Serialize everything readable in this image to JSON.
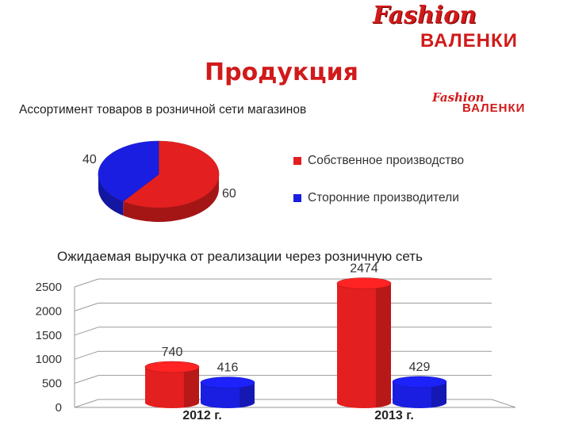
{
  "header": {
    "logo_script": "Fashion",
    "logo_brand": "ВАЛЕНКИ",
    "title": "Продукция"
  },
  "assortment": {
    "title": "Ассортимент товаров в розничной сети магазинов",
    "logo_script": "Fashion",
    "logo_brand": "ВАЛЕНКИ"
  },
  "revenue": {
    "title": "Ожидаемая выручка от реализации через розничную сеть"
  },
  "colors": {
    "red": "#e41f1f",
    "blue": "#1a1ee0",
    "brand_red": "#d11a1a"
  },
  "chart_data": [
    {
      "type": "pie",
      "labels": [
        "Собственное производство",
        "Сторонние производители"
      ],
      "values": [
        60,
        40
      ],
      "value_labels": [
        "60",
        "40"
      ],
      "colors": [
        "#e41f1f",
        "#1a1ee0"
      ],
      "legend_position": "right",
      "style": "3d"
    },
    {
      "type": "bar",
      "categories": [
        "2012 г.",
        "2013 г."
      ],
      "series": [
        {
          "values": [
            740,
            2474
          ],
          "color": "#e41f1f"
        },
        {
          "values": [
            416,
            429
          ],
          "color": "#1a1ee0"
        }
      ],
      "data_labels": [
        [
          "740",
          "2474"
        ],
        [
          "416",
          "429"
        ]
      ],
      "yticks": [
        "0",
        "500",
        "1000",
        "1500",
        "2000",
        "2500"
      ],
      "ylim": [
        0,
        2500
      ],
      "grid": true,
      "style": "3d-cylinder"
    }
  ]
}
